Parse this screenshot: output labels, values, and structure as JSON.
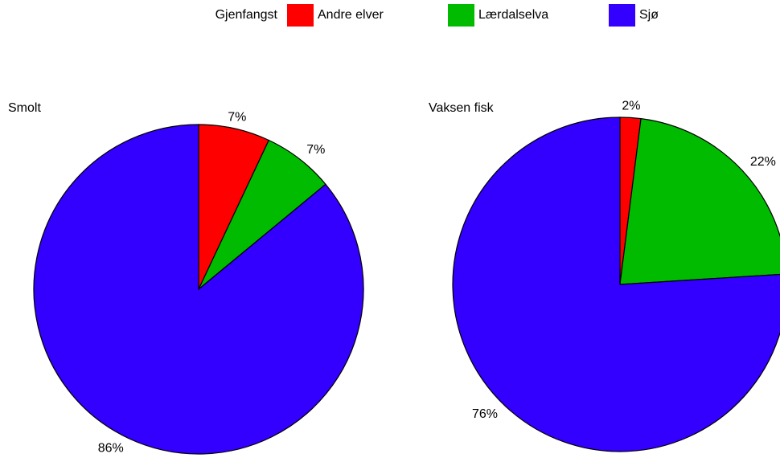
{
  "chart_data": [
    {
      "type": "pie",
      "title": "Smolt",
      "legend_title": "Gjenfangst",
      "categories": [
        "Andre elver",
        "Lærdalselva",
        "Sjø"
      ],
      "values": [
        7,
        7,
        86
      ],
      "value_labels": [
        "7%",
        "7%",
        "86%"
      ],
      "colors": [
        "#ff0000",
        "#00bb00",
        "#3300ff"
      ]
    },
    {
      "type": "pie",
      "title": "Vaksen fisk",
      "categories": [
        "Andre elver",
        "Lærdalselva",
        "Sjø"
      ],
      "values": [
        2,
        22,
        76
      ],
      "value_labels": [
        "2%",
        "22%",
        "76%"
      ],
      "colors": [
        "#ff0000",
        "#00bb00",
        "#3300ff"
      ]
    }
  ]
}
